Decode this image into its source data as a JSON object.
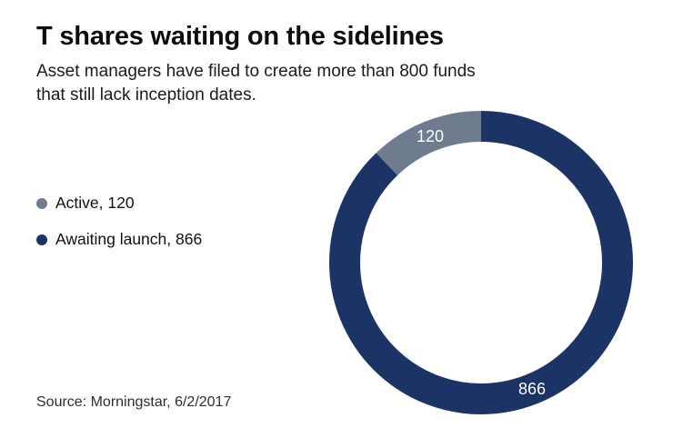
{
  "header": {
    "title": "T shares waiting on the sidelines",
    "subtitle_lines": [
      "Asset managers have filed to create more than 800 funds",
      "that still lack inception dates."
    ]
  },
  "legend": {
    "position": "left",
    "items": [
      {
        "label": "Active, 120",
        "color": "#6F7C8F"
      },
      {
        "label": "Awaiting launch, 866",
        "color": "#1C3365"
      }
    ]
  },
  "source": "Source: Morningstar, 6/2/2017",
  "colors": {
    "navy": "#1C3365",
    "slate_gray": "#6F7C8F",
    "background": "#FFFFFF",
    "slice_label_text": "#FFFFFF"
  },
  "chart_data": {
    "type": "pie",
    "subtype": "donut",
    "start_angle_deg": 0,
    "direction": "clockwise-from-top",
    "donut_thickness_ratio": 0.2,
    "segments_draw_order": [
      {
        "name": "Awaiting launch",
        "value": 866,
        "label": "866",
        "color": "#1C3365"
      },
      {
        "name": "Active",
        "value": 120,
        "label": "120",
        "color": "#6F7C8F"
      }
    ],
    "total": 986,
    "value_labels": "white, placed at mid-angle inside ring",
    "legend_position": "left",
    "title": "T shares waiting on the sidelines"
  }
}
